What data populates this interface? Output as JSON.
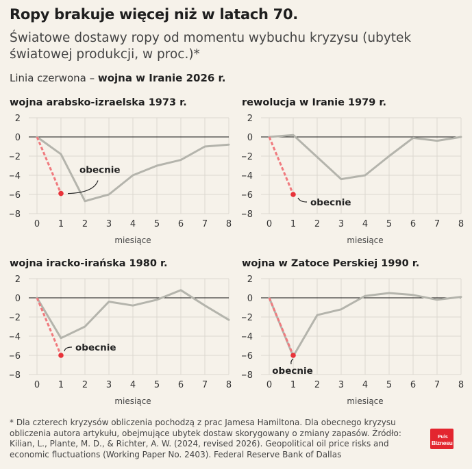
{
  "header": {
    "title": "Ropy brakuje więcej niż w latach 70.",
    "subtitle": "Światowe dostawy ropy od momentu wybuchu kryzysu (ubytek światowej produkcji, w proc.)*",
    "legend_prefix": "Linia czerwona – ",
    "legend_bold": "wojna w Iranie 2026 r."
  },
  "footnote": "* Dla czterech kryzysów obliczenia pochodzą z prac Jamesa Hamiltona. Dla obecnego kryzysu obliczenia autora artykułu, obejmujące ubytek dostaw skorygowany o zmiany zapasów. Źródło: Kilian, L., Plante, M. D., & Richter, A. W. (2024, revised 2026). Geopolitical oil price risks and economic fluctuations (Working Paper No. 2403). Federal Reserve Bank of Dallas",
  "logo": {
    "line1": "Puls",
    "line2": "Biznesu"
  },
  "colors": {
    "historical": "#b4b4ac",
    "current": "#e8333a",
    "current_dash": "#f07a7e",
    "grid": "#dcd8d0",
    "zero_line": "#111111",
    "background": "#f6f2ea"
  },
  "chart_data": [
    {
      "type": "line",
      "title": "wojna arabsko-izraelska 1973 r.",
      "xlabel": "miesiące",
      "ylabel": "",
      "xlim": [
        0,
        8
      ],
      "ylim": [
        -8,
        2
      ],
      "x_ticks": [
        0,
        1,
        2,
        3,
        4,
        5,
        6,
        7,
        8
      ],
      "y_ticks": [
        2,
        0,
        -2,
        -4,
        -6,
        -8
      ],
      "grid": true,
      "series": [
        {
          "x": [
            0,
            1,
            2,
            3,
            4,
            5,
            6,
            7,
            8
          ],
          "values": [
            0,
            -1.8,
            -6.7,
            -6.0,
            -4.0,
            -3.0,
            -2.4,
            -1.0,
            -0.8
          ]
        },
        {
          "x": [
            0,
            1
          ],
          "values": [
            0,
            -5.9
          ]
        }
      ],
      "annotation": {
        "text": "obecnie",
        "x": 1,
        "y": -5.9,
        "side": "above-right"
      }
    },
    {
      "type": "line",
      "title": "rewolucja w Iranie 1979 r.",
      "xlabel": "miesiące",
      "ylabel": "",
      "xlim": [
        0,
        8
      ],
      "ylim": [
        -8,
        2
      ],
      "x_ticks": [
        0,
        1,
        2,
        3,
        4,
        5,
        6,
        7,
        8
      ],
      "y_ticks": [
        2,
        0,
        -2,
        -4,
        -6,
        -8
      ],
      "grid": true,
      "series": [
        {
          "x": [
            0,
            1,
            2,
            3,
            4,
            5,
            6,
            7,
            8
          ],
          "values": [
            0,
            0.2,
            -2.1,
            -4.4,
            -4.0,
            -2.0,
            -0.1,
            -0.4,
            0
          ]
        },
        {
          "x": [
            0,
            1
          ],
          "values": [
            0,
            -6.0
          ]
        }
      ],
      "annotation": {
        "text": "obecnie",
        "x": 1,
        "y": -6.0,
        "side": "below-right"
      }
    },
    {
      "type": "line",
      "title": "wojna iracko-irańska 1980 r.",
      "xlabel": "miesiące",
      "ylabel": "",
      "xlim": [
        0,
        8
      ],
      "ylim": [
        -8,
        2
      ],
      "x_ticks": [
        0,
        1,
        2,
        3,
        4,
        5,
        6,
        7,
        8
      ],
      "y_ticks": [
        2,
        0,
        -2,
        -4,
        -6,
        -8
      ],
      "grid": true,
      "series": [
        {
          "x": [
            0,
            1,
            2,
            3,
            4,
            5,
            6,
            7,
            8
          ],
          "values": [
            0,
            -4.2,
            -3.0,
            -0.4,
            -0.8,
            -0.2,
            0.8,
            -0.8,
            -2.3
          ]
        },
        {
          "x": [
            0,
            1
          ],
          "values": [
            0,
            -6.0
          ]
        }
      ],
      "annotation": {
        "text": "obecnie",
        "x": 1,
        "y": -6.0,
        "side": "right"
      }
    },
    {
      "type": "line",
      "title": "wojna w Zatoce Perskiej 1990 r.",
      "xlabel": "miesiące",
      "ylabel": "",
      "xlim": [
        0,
        8
      ],
      "ylim": [
        -8,
        2
      ],
      "x_ticks": [
        0,
        1,
        2,
        3,
        4,
        5,
        6,
        7,
        8
      ],
      "y_ticks": [
        2,
        0,
        -2,
        -4,
        -6,
        -8
      ],
      "grid": true,
      "series": [
        {
          "x": [
            0,
            1,
            2,
            3,
            4,
            5,
            6,
            7,
            8
          ],
          "values": [
            0,
            -6.1,
            -1.8,
            -1.2,
            0.2,
            0.5,
            0.3,
            -0.2,
            0.1
          ]
        },
        {
          "x": [
            0,
            1
          ],
          "values": [
            0,
            -6.0
          ]
        }
      ],
      "annotation": {
        "text": "obecnie",
        "x": 1,
        "y": -6.0,
        "side": "below"
      }
    }
  ]
}
